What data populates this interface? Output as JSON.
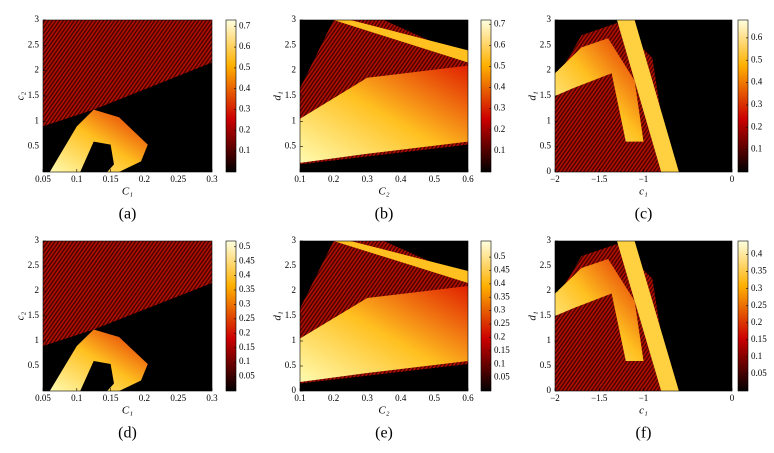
{
  "charts": [
    {
      "type": "heatmap",
      "panel_label": "(a)",
      "xlabel": "C₁",
      "ylabel": "c₂",
      "xlim": [
        0.05,
        0.3
      ],
      "ylim": [
        0,
        3
      ],
      "xticks": [
        0.05,
        0.1,
        0.15,
        0.2,
        0.25,
        0.3
      ],
      "yticks": [
        0.5,
        1,
        1.5,
        2,
        2.5,
        3
      ],
      "clim": [
        0,
        0.73
      ],
      "cticks": [
        0.1,
        0.2,
        0.3,
        0.4,
        0.5,
        0.6,
        0.7
      ],
      "shape": "fan"
    },
    {
      "type": "heatmap",
      "panel_label": "(b)",
      "xlabel": "C₂",
      "ylabel": "d₁",
      "xlim": [
        0.1,
        0.6
      ],
      "ylim": [
        0,
        3
      ],
      "xticks": [
        0.1,
        0.2,
        0.3,
        0.4,
        0.5,
        0.6
      ],
      "yticks": [
        0.5,
        1,
        1.5,
        2,
        2.5,
        3
      ],
      "clim": [
        0,
        0.72
      ],
      "cticks": [
        0.1,
        0.2,
        0.3,
        0.4,
        0.5,
        0.6,
        0.7
      ],
      "shape": "wedge"
    },
    {
      "type": "heatmap",
      "panel_label": "(c)",
      "xlabel": "c₁",
      "ylabel": "d₁",
      "xlim": [
        -2,
        0
      ],
      "ylim": [
        0,
        3
      ],
      "xticks": [
        {
          "value": -2,
          "label": "−2"
        },
        {
          "value": -1.5,
          "label": "−1.5"
        },
        {
          "value": -1,
          "label": "−1"
        },
        0
      ],
      "yticks": [
        0,
        0.5,
        1,
        1.5,
        2,
        2.5,
        3
      ],
      "clim": [
        0,
        0.68
      ],
      "cticks": [
        0.1,
        0.2,
        0.3,
        0.4,
        0.5,
        0.6
      ],
      "shape": "arch"
    },
    {
      "type": "heatmap",
      "panel_label": "(d)",
      "xlabel": "C₁",
      "ylabel": "c₂",
      "xlim": [
        0.05,
        0.3
      ],
      "ylim": [
        0,
        3
      ],
      "xticks": [
        0.05,
        0.1,
        0.15,
        0.2,
        0.25,
        0.3
      ],
      "yticks": [
        0.5,
        1,
        1.5,
        2,
        2.5,
        3
      ],
      "clim": [
        0,
        0.52
      ],
      "cticks": [
        0.05,
        0.1,
        0.15,
        0.2,
        0.25,
        0.3,
        0.35,
        0.4,
        0.45,
        0.5
      ],
      "shape": "fan"
    },
    {
      "type": "heatmap",
      "panel_label": "(e)",
      "xlabel": "C₂",
      "ylabel": "d₁",
      "xlim": [
        0.1,
        0.6
      ],
      "ylim": [
        0,
        3
      ],
      "xticks": [
        0.1,
        0.2,
        0.3,
        0.4,
        0.5,
        0.6
      ],
      "yticks": [
        0,
        0.5,
        1,
        1.5,
        2,
        2.5,
        3
      ],
      "clim": [
        0,
        0.56
      ],
      "cticks": [
        0.05,
        0.1,
        0.15,
        0.2,
        0.25,
        0.3,
        0.35,
        0.4,
        0.45,
        0.5
      ],
      "shape": "wedge"
    },
    {
      "type": "heatmap",
      "panel_label": "(f)",
      "xlabel": "c₁",
      "ylabel": "d₁",
      "xlim": [
        -2,
        0
      ],
      "ylim": [
        0,
        3
      ],
      "xticks": [
        {
          "value": -2,
          "label": "−2"
        },
        {
          "value": -1.5,
          "label": "−1.5"
        },
        {
          "value": -1,
          "label": "−1"
        },
        0
      ],
      "yticks": [
        0,
        0.5,
        1,
        1.5,
        2,
        2.5,
        3
      ],
      "clim": [
        0,
        0.44
      ],
      "cticks": [
        0.05,
        0.1,
        0.15,
        0.2,
        0.25,
        0.3,
        0.35,
        0.4
      ],
      "shape": "arch"
    }
  ]
}
